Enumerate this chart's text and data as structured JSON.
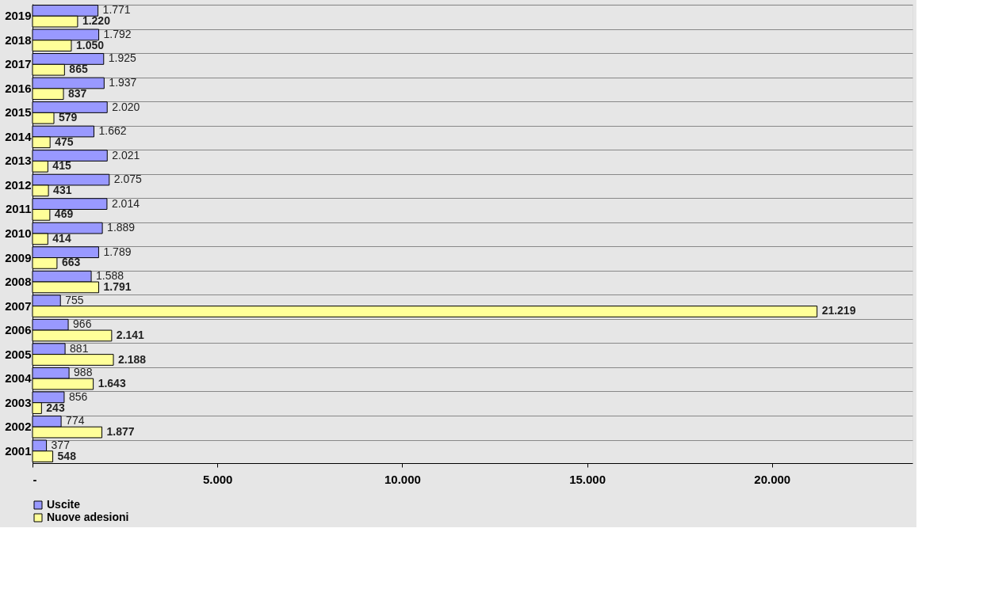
{
  "chart_data": {
    "type": "bar",
    "orientation": "horizontal",
    "categories": [
      "2019",
      "2018",
      "2017",
      "2016",
      "2015",
      "2014",
      "2013",
      "2012",
      "2011",
      "2010",
      "2009",
      "2008",
      "2007",
      "2006",
      "2005",
      "2004",
      "2003",
      "2002",
      "2001"
    ],
    "series": [
      {
        "name": "Uscite",
        "color": "#9999ff",
        "values": [
          1771,
          1792,
          1925,
          1937,
          2020,
          1662,
          2021,
          2075,
          2014,
          1889,
          1789,
          1588,
          755,
          966,
          881,
          988,
          856,
          774,
          377
        ],
        "value_labels": [
          "1.771",
          "1.792",
          "1.925",
          "1.937",
          "2.020",
          "1.662",
          "2.021",
          "2.075",
          "2.014",
          "1.889",
          "1.789",
          "1.588",
          "755",
          "966",
          "881",
          "988",
          "856",
          "774",
          "377"
        ]
      },
      {
        "name": "Nuove adesioni",
        "color": "#ffff99",
        "values": [
          1220,
          1050,
          865,
          837,
          579,
          475,
          415,
          431,
          469,
          414,
          663,
          1791,
          21219,
          2141,
          2188,
          1643,
          243,
          1877,
          548
        ],
        "value_labels": [
          "1.220",
          "1.050",
          "865",
          "837",
          "579",
          "475",
          "415",
          "431",
          "469",
          "414",
          "663",
          "1.791",
          "21.219",
          "2.141",
          "2.188",
          "1.643",
          "243",
          "1.877",
          "548"
        ]
      }
    ],
    "xlim": [
      0,
      23800
    ],
    "xticks": [
      {
        "value": 0,
        "label": "-"
      },
      {
        "value": 5000,
        "label": "5.000"
      },
      {
        "value": 10000,
        "label": "10.000"
      },
      {
        "value": 15000,
        "label": "15.000"
      },
      {
        "value": 20000,
        "label": "20.000"
      }
    ],
    "grid": "y",
    "legend": "bottom"
  }
}
